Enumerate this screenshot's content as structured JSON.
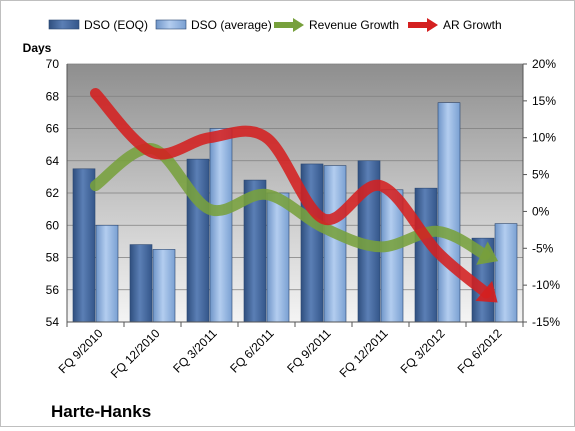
{
  "chart_data": {
    "type": "bar",
    "title": "",
    "company": "Harte-Hanks",
    "categories": [
      "FQ 9/2010",
      "FQ 12/2010",
      "FQ 3/2011",
      "FQ 6/2011",
      "FQ 9/2011",
      "FQ 12/2011",
      "FQ 3/2012",
      "FQ 6/2012"
    ],
    "ylabel": "Days",
    "ylim": [
      54,
      70
    ],
    "yticks": [
      "54",
      "56",
      "58",
      "60",
      "62",
      "64",
      "66",
      "68",
      "70"
    ],
    "y2lim": [
      -15,
      20
    ],
    "y2ticks": [
      "-15%",
      "-10%",
      "-5%",
      "0%",
      "5%",
      "10%",
      "15%",
      "20%"
    ],
    "grid": true,
    "legend_position": "top",
    "series": [
      {
        "name": "DSO (EOQ)",
        "kind": "bar",
        "axis": "left",
        "color": "#4a6fa5",
        "values": [
          63.5,
          58.8,
          64.1,
          62.8,
          63.8,
          64.0,
          62.3,
          59.2
        ]
      },
      {
        "name": "DSO (average)",
        "kind": "bar",
        "axis": "left",
        "color": "#8fb4e3",
        "values": [
          60.0,
          58.5,
          66.0,
          62.0,
          63.7,
          62.2,
          67.6,
          60.1
        ]
      },
      {
        "name": "Revenue Growth",
        "kind": "arrow-line",
        "axis": "right",
        "color": "#77a03c",
        "values": [
          3.5,
          8.5,
          0.3,
          2.3,
          -2.2,
          -4.8,
          -2.7,
          -6.5
        ]
      },
      {
        "name": "AR Growth",
        "kind": "arrow-line",
        "axis": "right",
        "color": "#d42020",
        "values": [
          16.0,
          8.0,
          10.0,
          10.0,
          -1.0,
          3.5,
          -5.5,
          -12.0
        ]
      }
    ]
  }
}
